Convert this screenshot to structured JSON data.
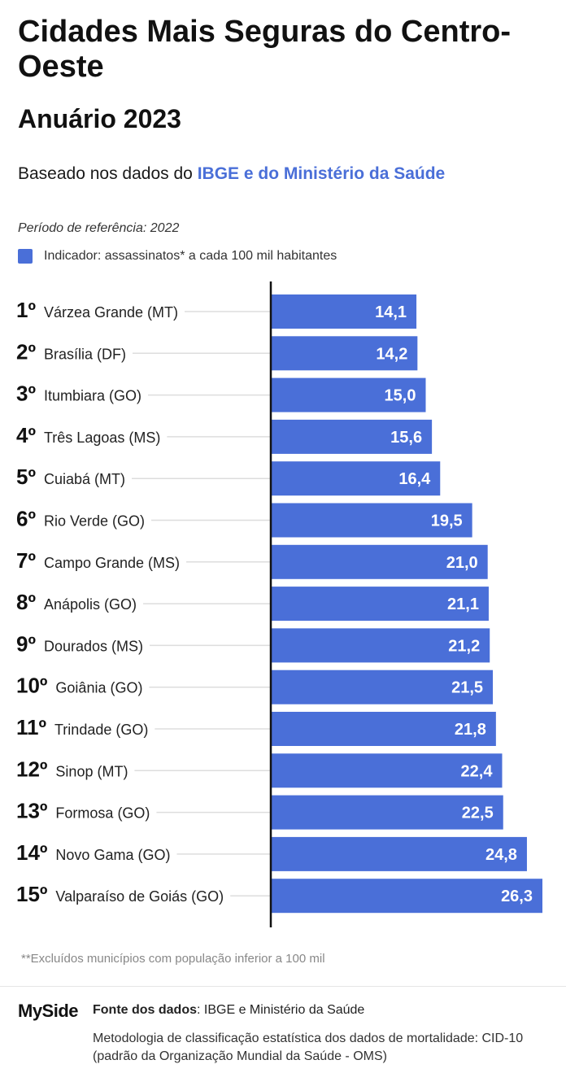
{
  "header": {
    "title": "Cidades Mais Seguras do Centro-Oeste",
    "subtitle": "Anuário 2023",
    "based_prefix": "Baseado nos dados do ",
    "based_highlight": "IBGE e do Ministério da Saúde",
    "period": "Período de referência: 2022",
    "legend_label": "Indicador: assassinatos* a cada 100 mil habitantes"
  },
  "colors": {
    "bar": "#4a6fd8",
    "highlight": "#4a6fd8"
  },
  "chart_data": {
    "type": "bar",
    "orientation": "horizontal",
    "categories": [
      "Várzea Grande (MT)",
      "Brasília (DF)",
      "Itumbiara (GO)",
      "Três Lagoas (MS)",
      "Cuiabá (MT)",
      "Rio Verde (GO)",
      "Campo Grande (MS)",
      "Anápolis (GO)",
      "Dourados (MS)",
      "Goiânia (GO)",
      "Trindade (GO)",
      "Sinop (MT)",
      "Formosa (GO)",
      "Novo Gama (GO)",
      "Valparaíso de Goiás (GO)"
    ],
    "ranks": [
      "1º",
      "2º",
      "3º",
      "4º",
      "5º",
      "6º",
      "7º",
      "8º",
      "9º",
      "10º",
      "11º",
      "12º",
      "13º",
      "14º",
      "15º"
    ],
    "values": [
      14.1,
      14.2,
      15.0,
      15.6,
      16.4,
      19.5,
      21.0,
      21.1,
      21.2,
      21.5,
      21.8,
      22.4,
      22.5,
      24.8,
      26.3
    ],
    "value_labels": [
      "14,1",
      "14,2",
      "15,0",
      "15,6",
      "16,4",
      "19,5",
      "21,0",
      "21,1",
      "21,2",
      "21,5",
      "21,8",
      "22,4",
      "22,5",
      "24,8",
      "26,3"
    ],
    "legend": "top-left",
    "grid": false
  },
  "footer": {
    "footnote": "**Excluídos municípios com população inferior a 100 mil",
    "logo": "MySide",
    "source_label": "Fonte dos dados",
    "source_text": ": IBGE e Ministério da Saúde",
    "methodology": "Metodologia de classificação estatística dos dados de mortalidade: CID-10 (padrão da Organização Mundial da Saúde - OMS)"
  }
}
